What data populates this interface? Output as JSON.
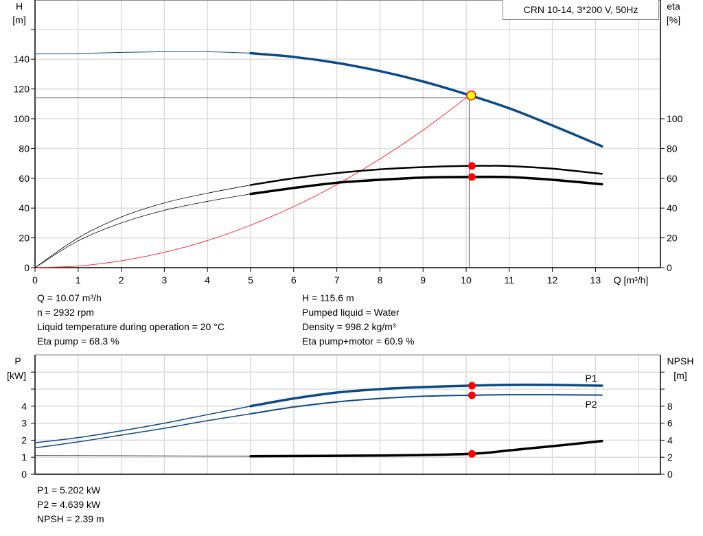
{
  "title": "CRN 10-14, 3*200 V, 50Hz",
  "colors": {
    "head": "#0b4a86",
    "eta": "#000000",
    "system": "#ff3030",
    "power": "#0b4a86",
    "npsh": "#000000",
    "duty_point": "#ff0000",
    "duty_point_fill": "#ffff00",
    "grid": "#dcdcdc"
  },
  "chart_data": [
    {
      "type": "line",
      "xlabel": "Q [m³/h]",
      "ylabel_left": "H",
      "ylabel_left_unit": "[m]",
      "ylabel_right": "eta",
      "ylabel_right_unit": "[%]",
      "xlim": [
        0,
        14.5
      ],
      "ylim": [
        0,
        180
      ],
      "x_ticks": [
        "0",
        "1",
        "2",
        "3",
        "4",
        "5",
        "6",
        "7",
        "8",
        "9",
        "10",
        "11",
        "12",
        "13"
      ],
      "y_left_ticks": [
        "0",
        "20",
        "40",
        "60",
        "80",
        "100",
        "120",
        "140"
      ],
      "y_right_ticks": [
        "0",
        "20",
        "40",
        "60",
        "80",
        "100"
      ],
      "grid": true,
      "series": [
        {
          "key": "head",
          "x": [
            0,
            1,
            2,
            3,
            4,
            5,
            6,
            7,
            8,
            9,
            10,
            11,
            12,
            13.15
          ],
          "y": [
            143.5,
            143.8,
            144.5,
            145,
            145,
            144,
            141.5,
            137.5,
            132,
            125,
            116.5,
            107,
            95.5,
            81.5
          ],
          "thick_from": 5
        },
        {
          "key": "eta_pump",
          "x": [
            0,
            1,
            2,
            3,
            4,
            5,
            6,
            7,
            8,
            9,
            10,
            10.5,
            11,
            12,
            13.15
          ],
          "y": [
            0,
            20,
            34,
            43.5,
            50,
            55.5,
            60,
            63.5,
            66,
            67.5,
            68.3,
            68.4,
            68.2,
            66.5,
            63
          ],
          "thick_from": 5
        },
        {
          "key": "eta_pump_motor",
          "x": [
            0,
            1,
            2,
            3,
            4,
            5,
            6,
            7,
            8,
            9,
            10,
            11,
            12,
            13.15
          ],
          "y": [
            0,
            18,
            30,
            38.5,
            44.5,
            49.5,
            53.5,
            57,
            59,
            60.5,
            60.9,
            60.8,
            59,
            56
          ],
          "thick_from": 5
        },
        {
          "key": "system",
          "x": [
            0,
            1,
            2,
            3,
            4,
            5,
            6,
            7,
            8,
            9,
            10.07
          ],
          "y": [
            0,
            1.1,
            4.6,
            10.3,
            18.2,
            28.5,
            41,
            55.8,
            73,
            92.3,
            115.6
          ]
        }
      ],
      "duty_point": {
        "Q": 10.07,
        "H": 115.6,
        "eta_pump": 68.3,
        "eta_pump_motor": 60.9,
        "reference_H": 114
      }
    },
    {
      "type": "line",
      "ylabel_left": "P",
      "ylabel_left_unit": "[kW]",
      "ylabel_right": "NPSH",
      "ylabel_right_unit": "[m]",
      "xlim": [
        0,
        14.5
      ],
      "ylim": [
        0,
        7
      ],
      "y_left_ticks": [
        "0",
        "1",
        "2",
        "3",
        "4"
      ],
      "y_right_ticks": [
        "0",
        "2",
        "4",
        "6",
        "8"
      ],
      "grid": true,
      "series": [
        {
          "key": "P1",
          "name": "P1",
          "x": [
            0,
            1,
            2,
            3,
            4,
            5,
            6,
            7,
            8,
            9,
            10.07,
            11,
            12,
            13.15
          ],
          "y": [
            1.85,
            2.15,
            2.55,
            3.0,
            3.5,
            4.0,
            4.45,
            4.8,
            5.0,
            5.12,
            5.202,
            5.25,
            5.25,
            5.2
          ],
          "thick_from": 5
        },
        {
          "key": "P2",
          "name": "P2",
          "x": [
            0,
            1,
            2,
            3,
            4,
            5,
            6,
            7,
            8,
            9,
            10.07,
            11,
            12,
            13.15
          ],
          "y": [
            1.55,
            1.9,
            2.3,
            2.7,
            3.15,
            3.55,
            3.95,
            4.25,
            4.45,
            4.58,
            4.639,
            4.67,
            4.67,
            4.65
          ],
          "thick_from": 5
        },
        {
          "key": "NPSH",
          "x": [
            0,
            2,
            5,
            8,
            10.07,
            11,
            12,
            13.15
          ],
          "y_m": [
            2.2,
            2.18,
            2.12,
            2.2,
            2.39,
            2.8,
            3.3,
            3.9
          ],
          "thick_from": 5
        }
      ],
      "duty_point": {
        "Q": 10.07,
        "P1": 5.202,
        "P2": 4.639,
        "NPSH": 2.39
      }
    }
  ],
  "info_top_left": [
    "Q = 10.07 m³/h",
    "n = 2932 rpm",
    "Liquid temperature during operation = 20 °C",
    "Eta pump = 68.3 %"
  ],
  "info_top_right": [
    "H = 115.6 m",
    "Pumped liquid = Water",
    "Density = 998.2 kg/m³",
    "Eta pump+motor = 60.9 %"
  ],
  "info_bottom": [
    "P1 = 5.202 kW",
    "P2 = 4.639 kW",
    "NPSH = 2.39 m"
  ]
}
